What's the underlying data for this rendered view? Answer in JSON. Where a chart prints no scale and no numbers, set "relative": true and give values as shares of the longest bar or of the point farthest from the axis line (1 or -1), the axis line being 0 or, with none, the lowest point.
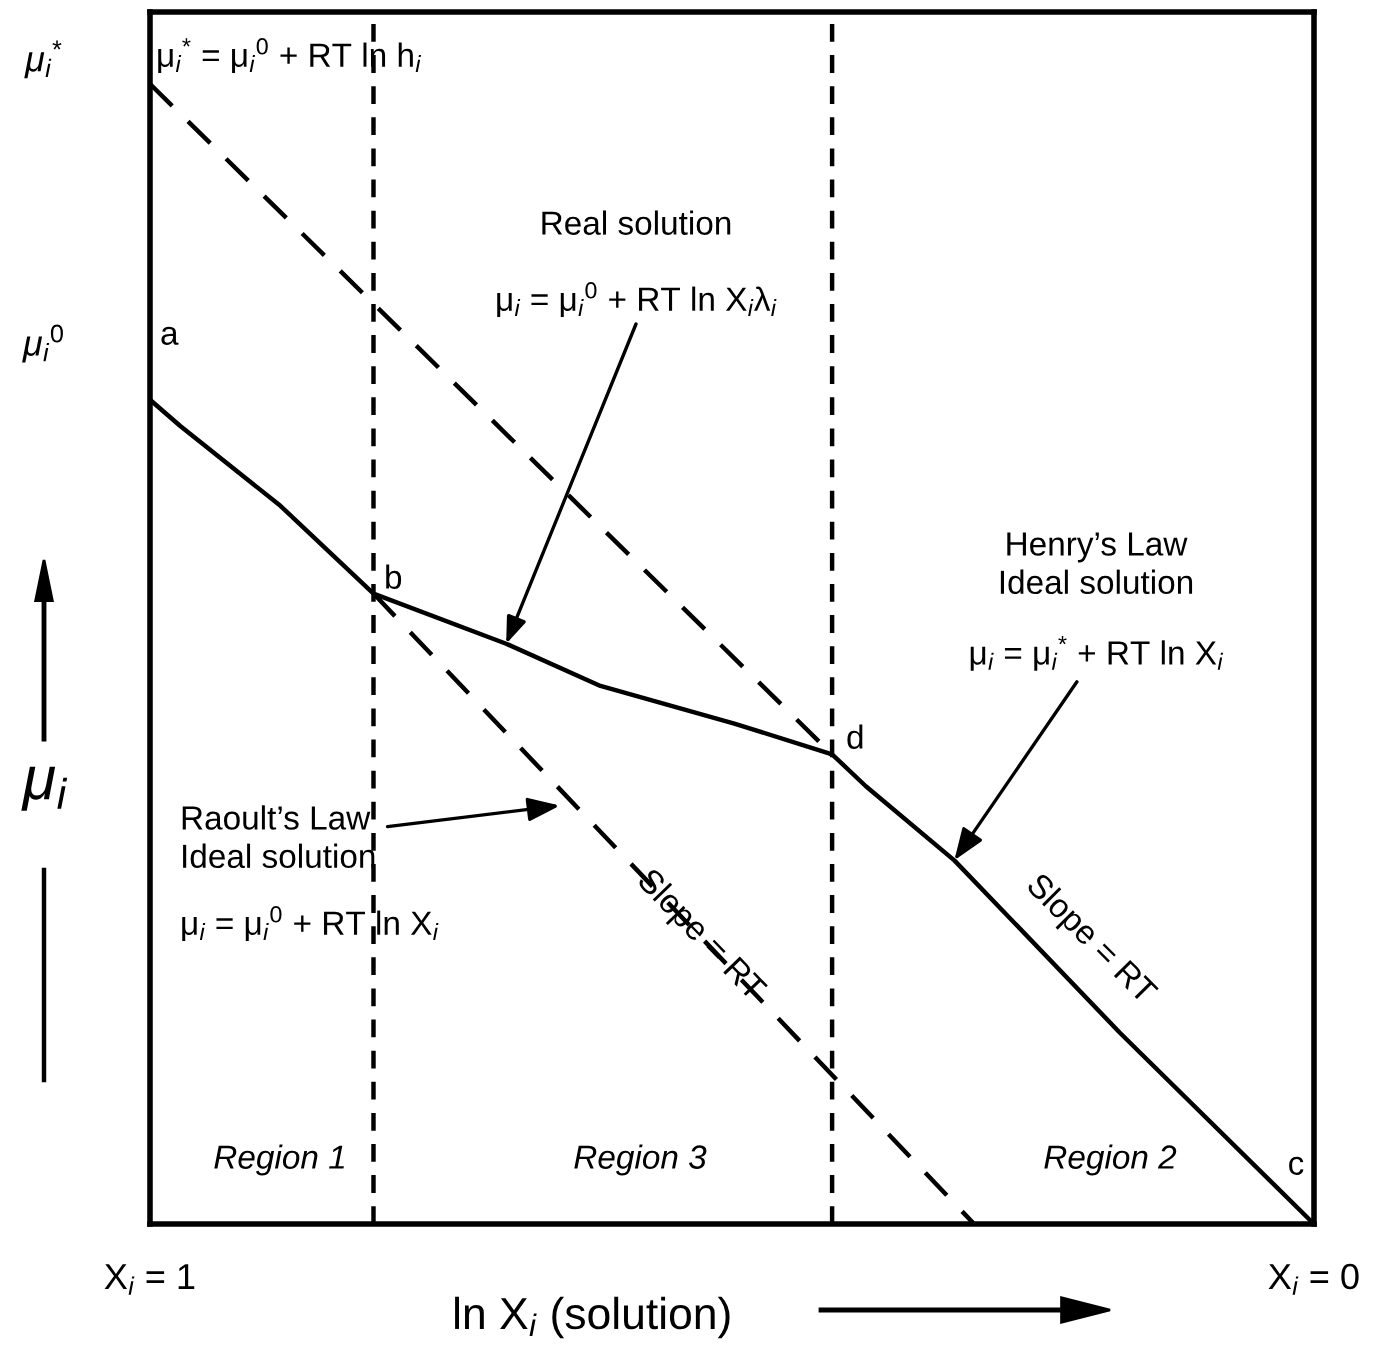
{
  "chart_data": {
    "type": "line",
    "relative": true,
    "xlabel": "ln X$_{i}$ (solution)",
    "ylabel": "μ$_{i}$",
    "xlim": [
      1,
      0
    ],
    "xticks": [
      {
        "value": 1,
        "label": "X$_{i}$ = 1"
      },
      {
        "value": 0,
        "label": "X$_{i}$ = 0"
      }
    ],
    "series": [
      {
        "color": "#000000",
        "line_style": "solid",
        "x": [
          1,
          0.974,
          0.888,
          0.808,
          0.694,
          0.613,
          0.498,
          0.414,
          0.385,
          0.309,
          0.167,
          0
        ],
        "values": [
          0.723,
          0.7,
          0.63,
          0.553,
          0.509,
          0.472,
          0.439,
          0.412,
          0.384,
          0.319,
          0.168,
          0
        ]
      },
      {
        "color": "#000000",
        "line_style": "dashed",
        "x": [
          1,
          0.414
        ],
        "values": [
          1,
          0.412
        ]
      },
      {
        "color": "#000000",
        "line_style": "dashed",
        "x": [
          0.808,
          0.292
        ],
        "values": [
          0.553,
          0
        ]
      }
    ],
    "ref_lines": [
      {
        "axis": "x",
        "value": 0.808,
        "color": "#000000",
        "line_style": "dashed"
      },
      {
        "axis": "x",
        "value": 0.414,
        "color": "#000000",
        "line_style": "dashed"
      }
    ],
    "annotations": [
      {
        "text": "μ$_{i}$$^{*}$",
        "x": 1,
        "y": 1
      },
      "μ$_{i}$$^{*}$ = μ$_{i}$$^{0}$ + RT ln h$_{i}$",
      {
        "text": "μ$_{i}$$^{0}$",
        "x": 1,
        "y": 0.723
      },
      {
        "text": "a",
        "x": 1,
        "y": 0.723
      },
      {
        "text": "b",
        "x": 0.808,
        "y": 0.553
      },
      {
        "text": "d",
        "x": 0.414,
        "y": 0.412
      },
      {
        "text": "c",
        "x": 0,
        "y": 0
      },
      "Real solution",
      "μ$_{i}$ = μ$_{i}$$^{0}$ + RT ln X$_{i}$λ$_{i}$",
      "Henry’s Law\nIdeal solution",
      {
        "text": "μ$_{i}$ = μ$_{i}$$^{*}$ + RT ln X$_{i}$",
        "x": 0.309,
        "y": 0.319
      },
      {
        "text": "Raoult’s Law\nIdeal solution",
        "x": 0.648,
        "y": 0.367
      },
      "μ$_{i}$ = μ$_{i}$$^{0}$ + RT ln X$_{i}$",
      {
        "text": "Slope = RT",
        "x": 0.536,
        "y": 0.261
      },
      {
        "text": "Slope = RT",
        "x": 0.201,
        "y": 0.207
      },
      "Region 1",
      "Region 3",
      "Region 2"
    ]
  }
}
